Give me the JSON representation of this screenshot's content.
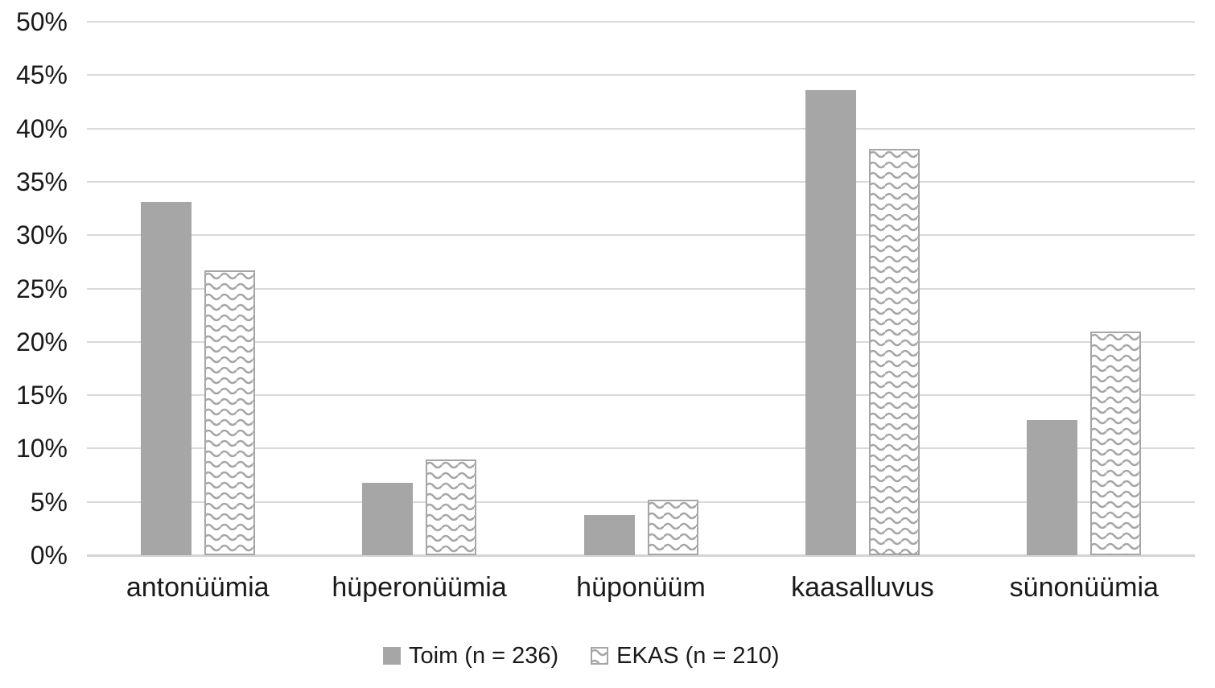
{
  "chart_data": {
    "type": "bar",
    "title": "",
    "categories": [
      "antonüümia",
      "hüperonüümia",
      "hüponüüm",
      "kaasalluvus",
      "sünonüümia"
    ],
    "series": [
      {
        "id": "toim",
        "name": "Toim (n = 236)",
        "values": [
          33.1,
          6.8,
          3.8,
          43.6,
          12.7
        ],
        "color": "#a6a6a6",
        "fill": "solid"
      },
      {
        "id": "ekas",
        "name": "EKAS (n = 210)",
        "values": [
          26.7,
          9.0,
          5.2,
          38.1,
          21.0
        ],
        "color": "#a6a6a6",
        "fill": "wave-pattern"
      }
    ],
    "xlabel": "",
    "ylabel": "",
    "ylim": [
      0,
      50
    ],
    "ytick_step": 5,
    "yticks": [
      {
        "value": 0,
        "label": "0%"
      },
      {
        "value": 5,
        "label": "5%"
      },
      {
        "value": 10,
        "label": "10%"
      },
      {
        "value": 15,
        "label": "15%"
      },
      {
        "value": 20,
        "label": "20%"
      },
      {
        "value": 25,
        "label": "25%"
      },
      {
        "value": 30,
        "label": "30%"
      },
      {
        "value": 35,
        "label": "35%"
      },
      {
        "value": 40,
        "label": "40%"
      },
      {
        "value": 45,
        "label": "45%"
      },
      {
        "value": 50,
        "label": "50%"
      }
    ],
    "grid": true,
    "legend_position": "bottom"
  },
  "colors": {
    "bar_gray": "#a6a6a6",
    "pattern_stroke": "#a6a6a6",
    "pattern_background": "#ffffff",
    "gridline": "#d9d9d9",
    "axis_line": "#d4d4d4",
    "text": "#1a1a1a",
    "background": "#ffffff"
  }
}
